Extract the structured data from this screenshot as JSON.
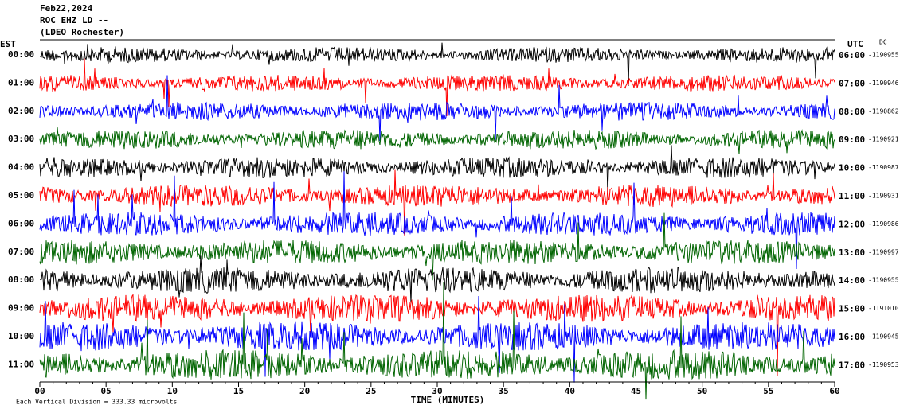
{
  "header": {
    "lines": [
      "Feb22,2024",
      "ROC EHZ LD --",
      "(LDEO Rochester)"
    ]
  },
  "left_axis": {
    "label": "EST",
    "ticks": [
      "00:00",
      "01:00",
      "02:00",
      "03:00",
      "04:00",
      "05:00",
      "06:00",
      "07:00",
      "08:00",
      "09:00",
      "10:00",
      "11:00"
    ]
  },
  "right_axis": {
    "label": "UTC",
    "dc_label": "DC",
    "ticks": [
      "06:00",
      "07:00",
      "08:00",
      "09:00",
      "10:00",
      "11:00",
      "12:00",
      "13:00",
      "14:00",
      "15:00",
      "16:00",
      "17:00"
    ],
    "dc_values": [
      "-1190955",
      "-1190946",
      "-1190862",
      "-1190921",
      "-1190987",
      "-1190931",
      "-1190986",
      "-1190997",
      "-1190955",
      "-1191010",
      "-1190945",
      "-1190953"
    ]
  },
  "x_axis": {
    "label": "TIME (MINUTES)",
    "ticks": [
      "00",
      "05",
      "10",
      "15",
      "20",
      "25",
      "30",
      "35",
      "40",
      "45",
      "50",
      "55",
      "60"
    ]
  },
  "footer": "Each Vertical Division = 333.33 microvolts"
}
